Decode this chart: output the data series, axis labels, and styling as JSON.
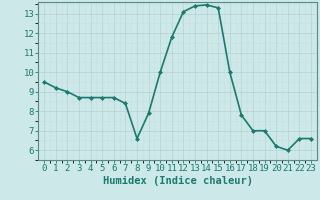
{
  "x": [
    0,
    1,
    2,
    3,
    4,
    5,
    6,
    7,
    8,
    9,
    10,
    11,
    12,
    13,
    14,
    15,
    16,
    17,
    18,
    19,
    20,
    21,
    22,
    23
  ],
  "y": [
    9.5,
    9.2,
    9.0,
    8.7,
    8.7,
    8.7,
    8.7,
    8.4,
    6.6,
    7.9,
    10.0,
    11.8,
    13.1,
    13.4,
    13.45,
    13.3,
    10.0,
    7.8,
    7.0,
    7.0,
    6.2,
    6.0,
    6.6,
    6.6
  ],
  "line_color": "#1a7a6e",
  "marker": "D",
  "marker_size": 2.0,
  "bg_color": "#cce8e8",
  "xlabel": "Humidex (Indice chaleur)",
  "ylim_min": 5.7,
  "ylim_max": 13.6,
  "xlim_min": -0.5,
  "xlim_max": 23.5,
  "yticks": [
    6,
    7,
    8,
    9,
    10,
    11,
    12,
    13
  ],
  "xticks": [
    0,
    1,
    2,
    3,
    4,
    5,
    6,
    7,
    8,
    9,
    10,
    11,
    12,
    13,
    14,
    15,
    16,
    17,
    18,
    19,
    20,
    21,
    22,
    23
  ],
  "tick_fontsize": 6.5,
  "xlabel_fontsize": 7.5,
  "line_width": 1.2,
  "grid_major_color": "#b8d0d0",
  "grid_minor_color": "#c8dede",
  "spine_color": "#5a8a84",
  "tick_color": "#1a7a6e",
  "xlabel_color": "#1a7a6e"
}
